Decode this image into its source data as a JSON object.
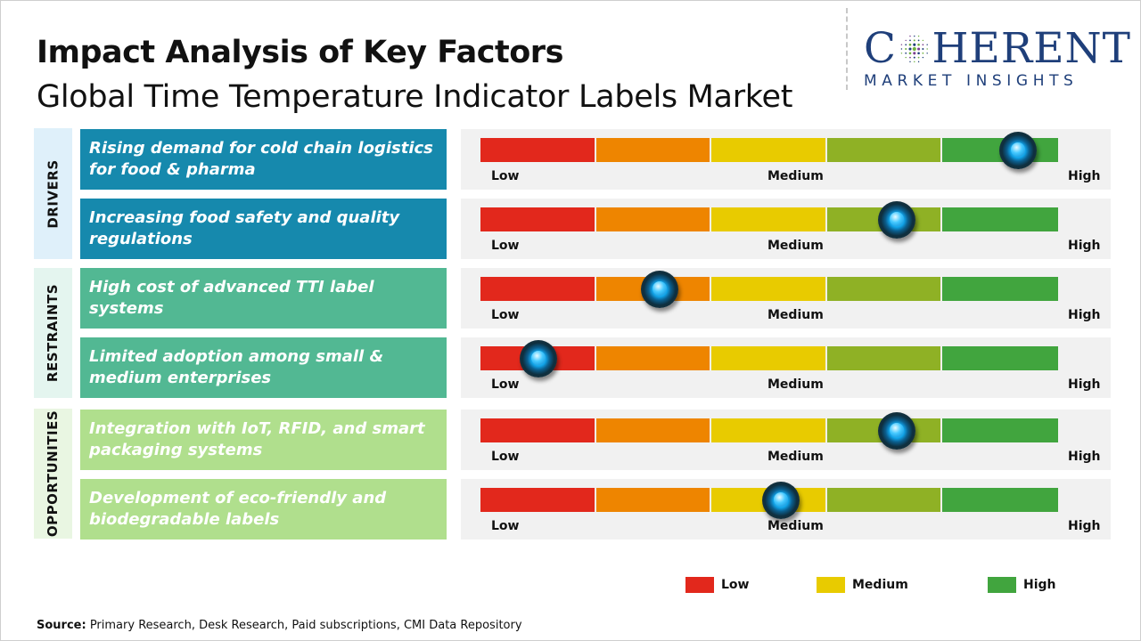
{
  "header": {
    "title": "Impact Analysis of Key Factors",
    "subtitle": "Global Time Temperature Indicator Labels Market"
  },
  "logo": {
    "line1_left": "C",
    "line1_right": "HERENT",
    "line2": "MARKET INSIGHTS",
    "color": "#1f3f7a"
  },
  "colors": {
    "scale": [
      "#e2281c",
      "#ee8500",
      "#e8cb00",
      "#8fb125",
      "#41a53e"
    ],
    "drivers_category_bg": "#dff0fa",
    "drivers_factor_bg": "#1689ad",
    "restraints_category_bg": "#e4f5ef",
    "restraints_factor_bg": "#52b893",
    "opportunities_category_bg": "#e9f6e2",
    "opportunities_factor_bg": "#b0df8d"
  },
  "scale_labels": {
    "low": "Low",
    "medium": "Medium",
    "high": "High"
  },
  "chart_data": {
    "type": "table",
    "title": "Impact Analysis of Key Factors",
    "subtitle": "Global Time Temperature Indicator Labels Market",
    "scale_min": 0,
    "scale_max": 1,
    "scale_labels": [
      "Low",
      "Medium",
      "High"
    ],
    "groups": [
      {
        "category": "DRIVERS",
        "factors": [
          {
            "label": "Rising demand for cold chain logistics for food & pharma",
            "impact": 0.93
          },
          {
            "label": "Increasing food safety and quality regulations",
            "impact": 0.72
          }
        ]
      },
      {
        "category": "RESTRAINTS",
        "factors": [
          {
            "label": "High cost of advanced TTI label systems",
            "impact": 0.31
          },
          {
            "label": "Limited adoption among small & medium enterprises",
            "impact": 0.1
          }
        ]
      },
      {
        "category": "OPPORTUNITIES",
        "factors": [
          {
            "label": "Integration with IoT, RFID, and smart packaging systems",
            "impact": 0.72
          },
          {
            "label": "Development of eco-friendly and biodegradable labels",
            "impact": 0.52
          }
        ]
      }
    ]
  },
  "legend": [
    {
      "label": "Low",
      "color": "#e2281c"
    },
    {
      "label": "Medium",
      "color": "#e8cb00"
    },
    {
      "label": "High",
      "color": "#41a53e"
    }
  ],
  "source": {
    "label": "Source:",
    "text": " Primary Research, Desk Research, Paid subscriptions, CMI Data Repository"
  }
}
